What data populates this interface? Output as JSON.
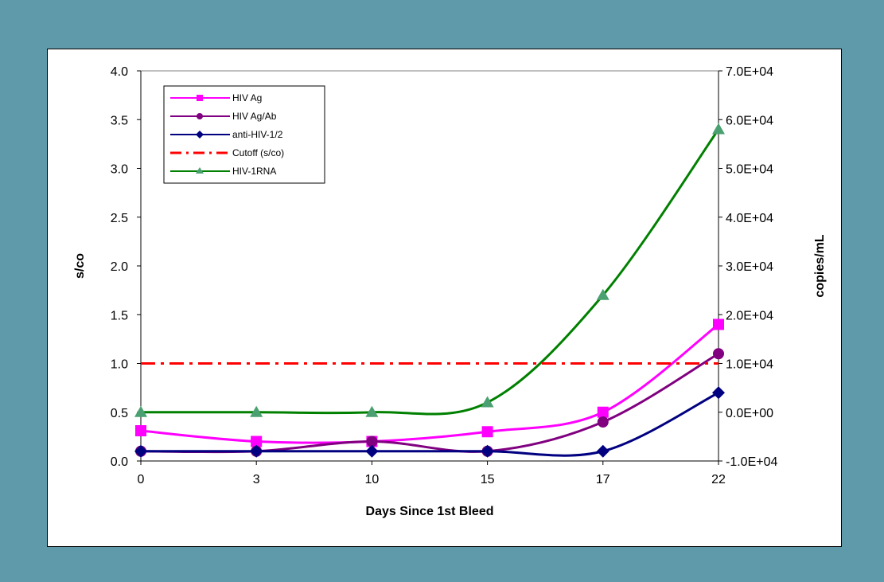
{
  "chart_data": {
    "type": "line",
    "xlabel": "Days Since 1st Bleed",
    "ylabel": "s/co",
    "y2label": "copies/mL",
    "categories": [
      "0",
      "3",
      "10",
      "15",
      "17",
      "22"
    ],
    "ylim": [
      0,
      4
    ],
    "y_ticks": [
      "0.0",
      "0.5",
      "1.0",
      "1.5",
      "2.0",
      "2.5",
      "3.0",
      "3.5",
      "4.0"
    ],
    "y2lim": [
      -10000,
      70000
    ],
    "y2_ticks": [
      "-1.0E+04",
      "0.0E+00",
      "1.0E+04",
      "2.0E+04",
      "3.0E+04",
      "4.0E+04",
      "5.0E+04",
      "6.0E+04",
      "7.0E+04"
    ],
    "legend_position": "top-left",
    "series": [
      {
        "name": "HIV Ag",
        "axis": "left",
        "values": [
          0.31,
          0.2,
          0.2,
          0.3,
          0.5,
          1.4
        ],
        "color": "#ff00ff",
        "marker": "square",
        "style": "solid"
      },
      {
        "name": "HIV Ag/Ab",
        "axis": "left",
        "values": [
          0.1,
          0.1,
          0.2,
          0.1,
          0.4,
          1.1
        ],
        "color": "#800080",
        "marker": "circle",
        "style": "solid"
      },
      {
        "name": "anti-HIV-1/2",
        "axis": "left",
        "values": [
          0.1,
          0.1,
          0.1,
          0.1,
          0.1,
          0.7
        ],
        "color": "#000080",
        "marker": "diamond",
        "style": "solid"
      },
      {
        "name": "Cutoff (s/co)",
        "axis": "left",
        "values": [
          1.0,
          1.0,
          1.0,
          1.0,
          1.0,
          1.0
        ],
        "color": "#ff0000",
        "marker": "none",
        "style": "dashdot"
      },
      {
        "name": "HIV-1RNA",
        "axis": "right",
        "values": [
          0,
          0,
          0,
          2000,
          24000,
          58000
        ],
        "color": "#008000",
        "marker_color": "#4aa070",
        "marker": "triangle",
        "style": "solid"
      }
    ]
  }
}
